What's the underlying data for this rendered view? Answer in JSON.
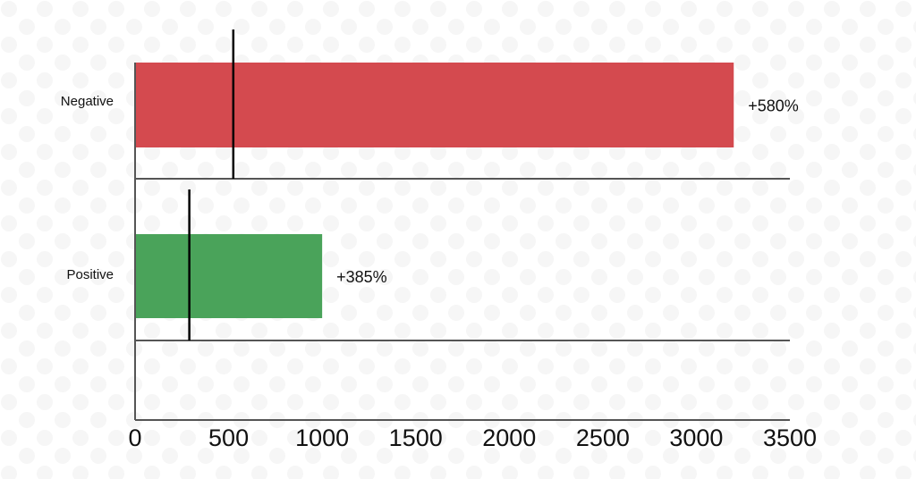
{
  "chart_data": {
    "type": "hbar",
    "categories": [
      "Negative",
      "Positive"
    ],
    "values": [
      3200,
      1000
    ],
    "value_labels": [
      "+580%",
      "+385%"
    ],
    "colors": [
      "#d44a4f",
      "#4aa35a"
    ],
    "reference_values": [
      525,
      290
    ],
    "xlim": [
      0,
      3500
    ],
    "xticks": [
      0,
      500,
      1000,
      1500,
      2000,
      2500,
      3000,
      3500
    ]
  }
}
